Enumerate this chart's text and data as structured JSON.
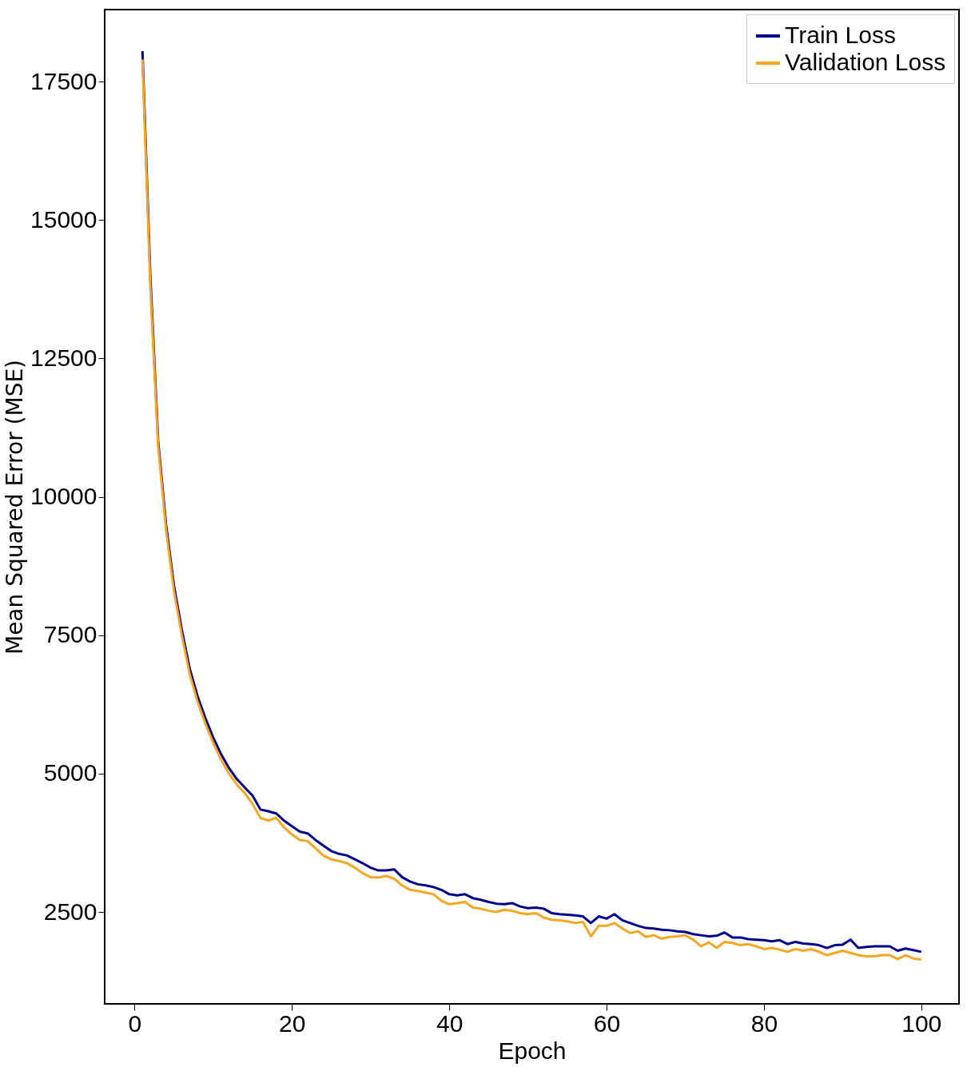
{
  "chart_data": {
    "type": "line",
    "xlabel": "Epoch",
    "ylabel": "Mean Squared Error (MSE)",
    "x": [
      1,
      2,
      3,
      4,
      5,
      6,
      7,
      8,
      9,
      10,
      11,
      12,
      13,
      14,
      15,
      16,
      17,
      18,
      19,
      20,
      21,
      22,
      23,
      24,
      25,
      26,
      27,
      28,
      29,
      30,
      31,
      32,
      33,
      34,
      35,
      36,
      37,
      38,
      39,
      40,
      41,
      42,
      43,
      44,
      45,
      46,
      47,
      48,
      49,
      50,
      51,
      52,
      53,
      54,
      55,
      56,
      57,
      58,
      59,
      60,
      61,
      62,
      63,
      64,
      65,
      66,
      67,
      68,
      69,
      70,
      71,
      72,
      73,
      74,
      75,
      76,
      77,
      78,
      79,
      80,
      81,
      82,
      83,
      84,
      85,
      86,
      87,
      88,
      89,
      90,
      91,
      92,
      93,
      94,
      95,
      96,
      97,
      98,
      99,
      100
    ],
    "series": [
      {
        "name": "Train Loss",
        "color": "#00008b",
        "values": [
          18050,
          14000,
          11000,
          9500,
          8400,
          7600,
          6900,
          6400,
          6000,
          5650,
          5350,
          5100,
          4900,
          4750,
          4600,
          4350,
          4320,
          4280,
          4150,
          4050,
          3950,
          3920,
          3800,
          3700,
          3600,
          3550,
          3520,
          3450,
          3380,
          3300,
          3250,
          3250,
          3270,
          3130,
          3050,
          3000,
          2980,
          2950,
          2900,
          2820,
          2800,
          2820,
          2750,
          2720,
          2680,
          2650,
          2640,
          2660,
          2600,
          2570,
          2580,
          2560,
          2480,
          2460,
          2450,
          2440,
          2420,
          2300,
          2420,
          2380,
          2460,
          2350,
          2300,
          2250,
          2210,
          2200,
          2180,
          2170,
          2150,
          2140,
          2100,
          2080,
          2060,
          2070,
          2130,
          2040,
          2040,
          2010,
          2000,
          1990,
          1970,
          1990,
          1920,
          1960,
          1930,
          1920,
          1900,
          1850,
          1900,
          1910,
          2000,
          1850,
          1870,
          1880,
          1880,
          1880,
          1800,
          1840,
          1810,
          1780
        ]
      },
      {
        "name": "Validation Loss",
        "color": "#f5a623",
        "values": [
          17900,
          13800,
          10900,
          9400,
          8300,
          7500,
          6800,
          6300,
          5900,
          5550,
          5250,
          5000,
          4800,
          4650,
          4450,
          4200,
          4150,
          4200,
          4030,
          3900,
          3800,
          3780,
          3650,
          3520,
          3450,
          3420,
          3380,
          3300,
          3200,
          3130,
          3120,
          3150,
          3100,
          2980,
          2900,
          2880,
          2850,
          2820,
          2700,
          2640,
          2660,
          2680,
          2580,
          2560,
          2520,
          2500,
          2540,
          2520,
          2480,
          2460,
          2480,
          2400,
          2360,
          2350,
          2330,
          2300,
          2320,
          2060,
          2250,
          2250,
          2300,
          2200,
          2120,
          2150,
          2050,
          2080,
          2020,
          2050,
          2060,
          2080,
          2000,
          1880,
          1950,
          1850,
          1960,
          1940,
          1900,
          1920,
          1880,
          1830,
          1850,
          1820,
          1780,
          1830,
          1800,
          1830,
          1780,
          1720,
          1760,
          1800,
          1760,
          1720,
          1700,
          1700,
          1720,
          1720,
          1650,
          1720,
          1660,
          1640
        ]
      }
    ],
    "xlim": [
      -3.8,
      104.8
    ],
    "ylim": [
      840,
      18800
    ],
    "xticks": [
      0,
      20,
      40,
      60,
      80,
      100
    ],
    "yticks": [
      2500,
      5000,
      7500,
      10000,
      12500,
      15000,
      17500
    ],
    "grid": false,
    "legend": "top right",
    "line_style": "solid",
    "marker": "none"
  }
}
